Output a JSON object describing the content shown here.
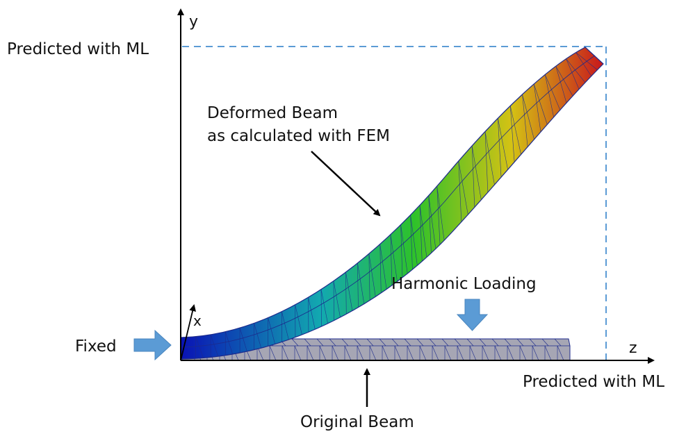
{
  "labels": {
    "y_axis": "y",
    "z_axis": "z",
    "x_axis": "x",
    "predicted_top": "Predicted with ML",
    "predicted_right": "Predicted with ML",
    "deformed_line1": "Deformed Beam",
    "deformed_line2": "as calculated with FEM",
    "harmonic_loading": "Harmonic Loading",
    "fixed": "Fixed",
    "original_beam": "Original Beam"
  },
  "colors": {
    "axis": "#000000",
    "dashed_guide": "#5b9bd5",
    "load_arrow": "#5b9bd5",
    "original_beam_fill": "#a6a6b4",
    "mesh_line": "#1c2a8c",
    "gradient_start": "#0a12b4",
    "gradient_mid1": "#12a9b0",
    "gradient_mid2": "#2ec22a",
    "gradient_mid3": "#d4c214",
    "gradient_end": "#c8141c"
  }
}
